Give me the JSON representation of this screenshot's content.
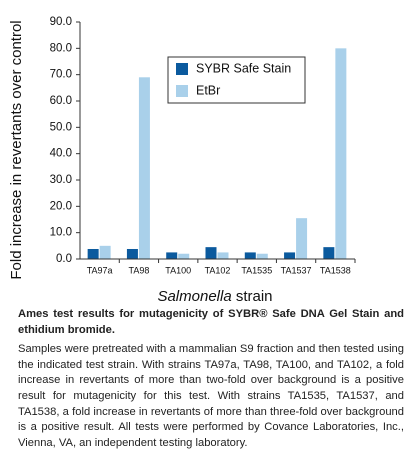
{
  "chart_data": {
    "type": "bar",
    "ylabel": "Fold increase in revertants over control",
    "xlabel": [
      "Salmonella",
      "strain"
    ],
    "categories": [
      "TA97a",
      "TA98",
      "TA100",
      "TA102",
      "TA1535",
      "TA1537",
      "TA1538"
    ],
    "series": [
      {
        "name": "SYBR Safe Stain",
        "color": "#0b5a9e",
        "values": [
          3.8,
          3.8,
          2.5,
          4.5,
          2.5,
          2.5,
          4.5
        ]
      },
      {
        "name": "EtBr",
        "color": "#a9d0ea",
        "values": [
          5,
          69,
          2,
          2.5,
          2,
          15.5,
          80
        ]
      }
    ],
    "ylim": [
      0,
      90
    ],
    "yticks": [
      {
        "value": 0,
        "label": "0.0"
      },
      {
        "value": 10,
        "label": "10.0"
      },
      {
        "value": 20,
        "label": "20.0"
      },
      {
        "value": 30,
        "label": "30.0"
      },
      {
        "value": 40,
        "label": "40.0"
      },
      {
        "value": 50,
        "label": "50.0"
      },
      {
        "value": 60,
        "label": "60.0"
      },
      {
        "value": 70,
        "label": "70.0"
      },
      {
        "value": 80,
        "label": "80.0"
      },
      {
        "value": 90,
        "label": "90.0"
      }
    ],
    "grid": false,
    "legend": "top-center"
  },
  "caption": {
    "title": "Ames test results for mutagenicity of SYBR® Safe DNA Gel Stain and ethidium bromide.",
    "text": "Samples were pretreated with a mammalian S9 fraction and then tested using the indicated test strain. With strains TA97a, TA98, TA100, and TA102, a fold increase in revertants of more than two-fold over background is a positive result for mutagenicity for this test. With strains TA1535, TA1537, and TA1538, a fold increase in revertants of more than three-fold over background is a positive result. All tests were performed by Covance Laboratories, Inc., Vienna, VA, an independent testing laboratory."
  }
}
